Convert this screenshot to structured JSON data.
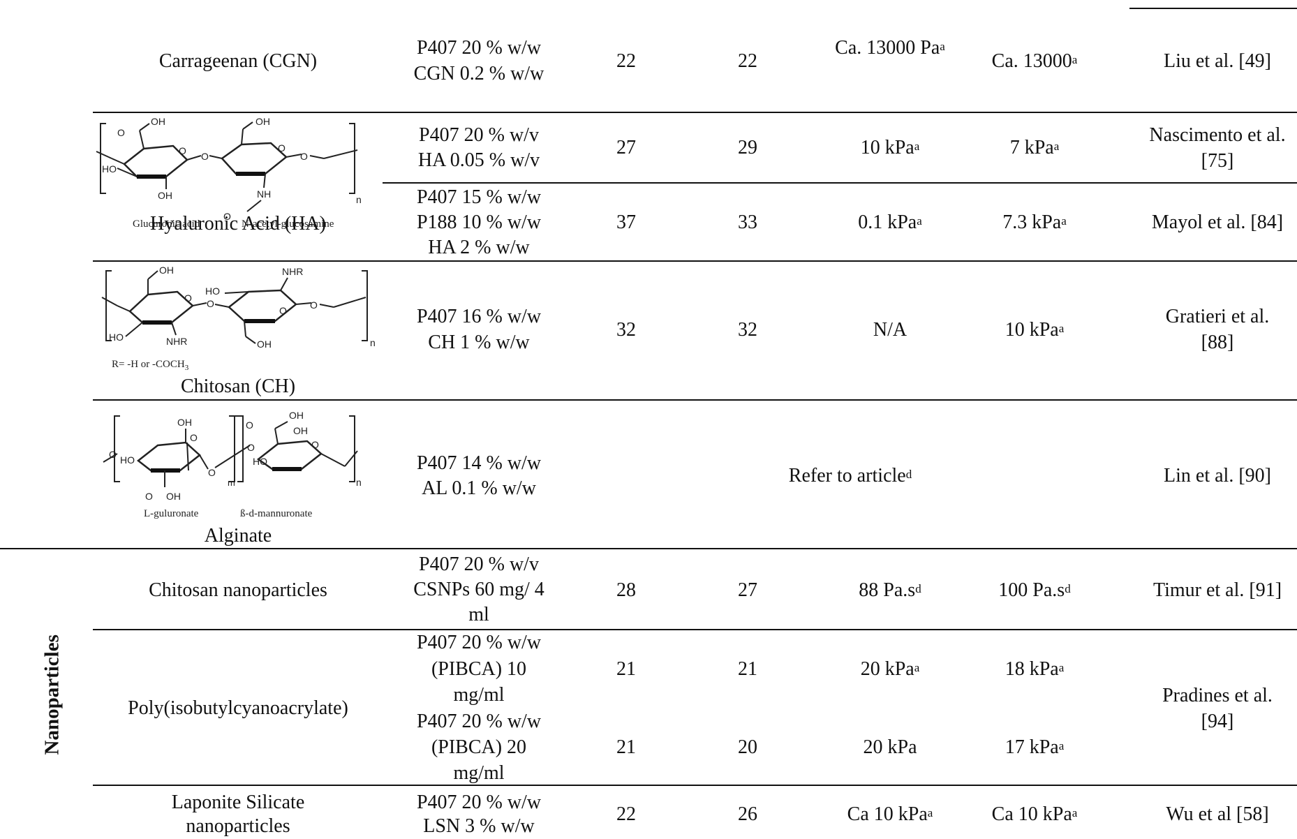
{
  "side_label": "Nanoparticles",
  "rows": [
    {
      "polymer": "Carrageenan (CGN)",
      "formulation": [
        "P407 20 % w/w",
        "CGN 0.2 % w/w"
      ],
      "tsol_gel": "22",
      "tgel": "22",
      "g1": "Ca. 13000 Pa",
      "g1_sup": "a",
      "g2": "Ca. 13000",
      "g2_sup": "a",
      "ref": "Liu et al. [49]"
    },
    {
      "polymer_structure": {
        "name": "Hyaluronic Acid (HA)",
        "units": [
          "Glucuronic acid",
          "N-acetyl-glucosamine"
        ],
        "atoms": [
          "OH",
          "O",
          "HO",
          "NH",
          "n"
        ]
      },
      "entries": [
        {
          "formulation": [
            "P407 20 % w/v",
            "HA 0.05 % w/v"
          ],
          "tsol_gel": "27",
          "tgel": "29",
          "g1": "10 kPa",
          "g1_sup": "a",
          "g2": "7 kPa",
          "g2_sup": "a",
          "ref": "Nascimento et al. [75]"
        },
        {
          "formulation": [
            "P407 15 % w/w",
            "P188 10 % w/w",
            "HA 2 % w/w"
          ],
          "tsol_gel": "37",
          "tgel": "33",
          "g1": "0.1 kPa",
          "g1_sup": "a",
          "g2": "7.3 kPa",
          "g2_sup": "a",
          "ref": "Mayol et al. [84]"
        }
      ]
    },
    {
      "polymer_structure": {
        "name": "Chitosan (CH)",
        "note": "R= -H or -COCH",
        "note_sub": "3",
        "atoms": [
          "OH",
          "HO",
          "NHR",
          "O",
          "n"
        ]
      },
      "formulation": [
        "P407 16 % w/w",
        "CH 1 % w/w"
      ],
      "tsol_gel": "32",
      "tgel": "32",
      "g1": "N/A",
      "g2": "10 kPa",
      "g2_sup": "a",
      "ref": "Gratieri et al. [88]"
    },
    {
      "polymer_structure": {
        "name": "Alginate",
        "units": [
          "L-guluronate",
          "ß-d-mannuronate"
        ],
        "atoms": [
          "OH",
          "O",
          "HO",
          "m",
          "n"
        ]
      },
      "formulation": [
        "P407 14 % w/w",
        "AL 0.1 % w/w"
      ],
      "merged": "Refer to article",
      "merged_sup": "d",
      "ref": "Lin et al. [90]"
    },
    {
      "polymer": "Chitosan nanoparticles",
      "formulation": [
        "P407 20 % w/v",
        "CSNPs 60 mg/ 4",
        "ml"
      ],
      "tsol_gel": "28",
      "tgel": "27",
      "g1": "88 Pa.s",
      "g1_sup": "d",
      "g2": "100 Pa.s",
      "g2_sup": "d",
      "ref": "Timur et al. [91]"
    },
    {
      "polymer": "Poly(isobutylcyanoacrylate)",
      "ref": "Pradines et al. [94]",
      "entries": [
        {
          "formulation": [
            "P407 20 % w/w",
            "(PIBCA) 10",
            "mg/ml"
          ],
          "tsol_gel": "21",
          "tgel": "21",
          "g1": "20 kPa",
          "g1_sup": "a",
          "g2": "18 kPa",
          "g2_sup": "a"
        },
        {
          "formulation": [
            "P407 20 % w/w",
            "(PIBCA) 20",
            "mg/ml"
          ],
          "tsol_gel": "21",
          "tgel": "20",
          "g1": "20 kPa",
          "g1_sup": "",
          "g2": "17 kPa",
          "g2_sup": "a"
        }
      ]
    },
    {
      "polymer": [
        "Laponite Silicate",
        "nanoparticles"
      ],
      "formulation": [
        "P407 20 % w/w",
        "LSN 3 % w/w"
      ],
      "tsol_gel": "22",
      "tgel": "26",
      "g1": "Ca 10 kPa",
      "g1_sup": "a",
      "g2": "Ca 10 kPa",
      "g2_sup": "a",
      "ref": "Wu et al [58]"
    }
  ]
}
